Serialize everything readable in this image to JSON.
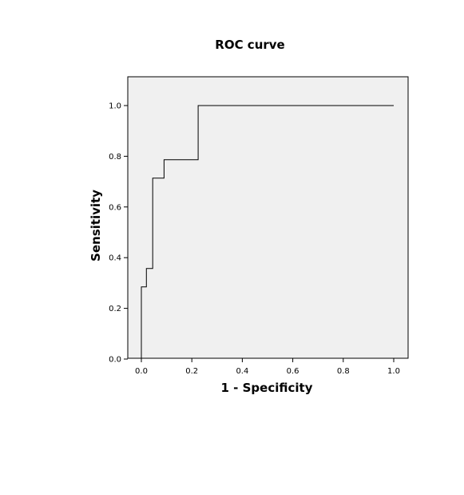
{
  "chart_data": {
    "type": "line",
    "title": "ROC  curve",
    "xlabel": "1 - Specificity",
    "ylabel": "Sensitivity",
    "xlim": [
      0.0,
      1.0
    ],
    "ylim": [
      0.0,
      1.0
    ],
    "x_ticks": [
      "0.0",
      "0.2",
      "0.4",
      "0.6",
      "0.8",
      "1.0"
    ],
    "y_ticks": [
      "0.0",
      "0.2",
      "0.4",
      "0.6",
      "0.8",
      "1.0"
    ],
    "grid": false,
    "legend": "none",
    "colors": {
      "plot_background": "#f0f0f0",
      "line": "#000000"
    },
    "series": [
      {
        "x": [
          0.0,
          0.0,
          0.02,
          0.02,
          0.045,
          0.045,
          0.09,
          0.09,
          0.225,
          0.225,
          1.0
        ],
        "y": [
          0.0,
          0.285,
          0.285,
          0.357,
          0.357,
          0.714,
          0.714,
          0.786,
          0.786,
          1.0,
          1.0
        ]
      }
    ]
  }
}
